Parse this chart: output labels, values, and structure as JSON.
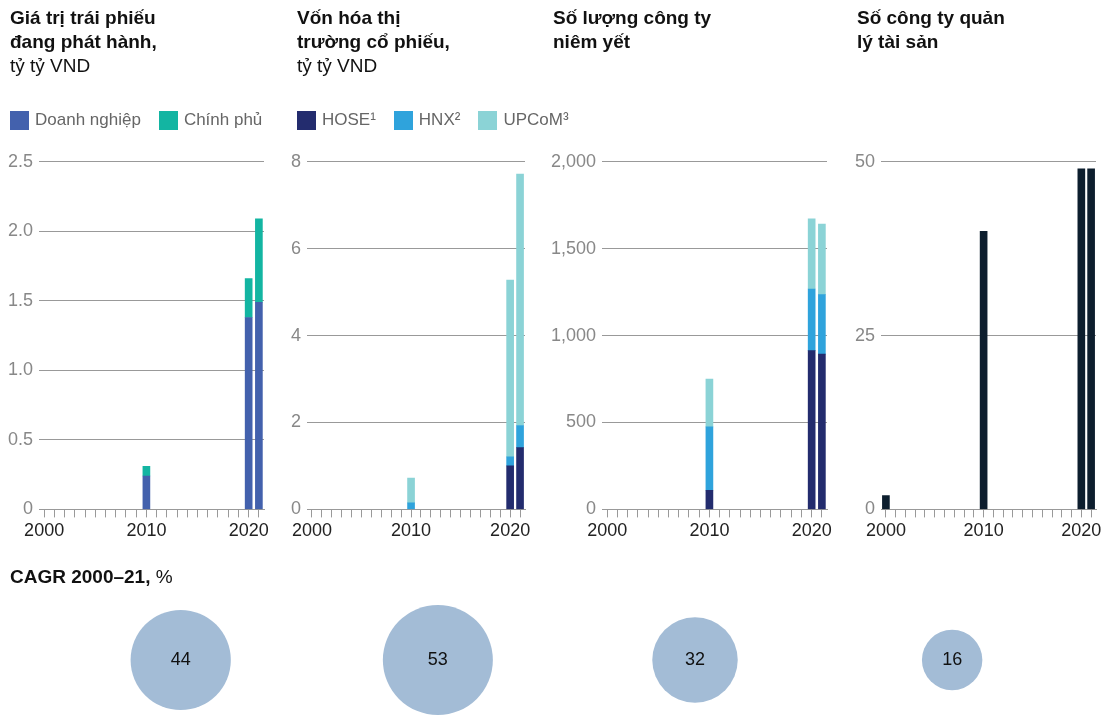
{
  "chart_data": [
    {
      "type": "bar",
      "title": "Giá trị trái phiếu đang phát hành,",
      "subtitle": "tỷ tỷ VND",
      "stacked": true,
      "legend": "top",
      "grid": "y",
      "categories": [
        "2000",
        null,
        null,
        null,
        null,
        null,
        null,
        null,
        null,
        null,
        "2010",
        null,
        null,
        null,
        null,
        null,
        null,
        null,
        null,
        null,
        "2020",
        null
      ],
      "series": [
        {
          "name": "Doanh nghiệp",
          "color": "#4361ad",
          "values": [
            null,
            null,
            null,
            null,
            null,
            null,
            null,
            null,
            null,
            null,
            0.24,
            null,
            null,
            null,
            null,
            null,
            null,
            null,
            null,
            null,
            1.38,
            1.49
          ]
        },
        {
          "name": "Chính phủ",
          "color": "#13b5a2",
          "values": [
            null,
            null,
            null,
            null,
            null,
            null,
            null,
            null,
            null,
            null,
            0.07,
            null,
            null,
            null,
            null,
            null,
            null,
            null,
            null,
            null,
            0.28,
            0.6
          ]
        }
      ],
      "ylim": [
        0,
        2.5
      ],
      "yticks": [
        0,
        0.5,
        {
          "value": 1,
          "label": "1.0"
        },
        1.5,
        {
          "value": 2,
          "label": "2.0"
        },
        2.5
      ]
    },
    {
      "type": "bar",
      "title": "Vốn hóa thị trường cổ phiếu,",
      "subtitle": "tỷ tỷ VND",
      "stacked": true,
      "legend": "top",
      "grid": "y",
      "categories": [
        "2000",
        null,
        null,
        null,
        null,
        null,
        null,
        null,
        null,
        null,
        "2010",
        null,
        null,
        null,
        null,
        null,
        null,
        null,
        null,
        null,
        "2020",
        null
      ],
      "series": [
        {
          "name": "HOSE¹",
          "color": "#232c6e",
          "values": [
            null,
            null,
            null,
            null,
            null,
            null,
            null,
            null,
            null,
            null,
            null,
            null,
            null,
            null,
            null,
            null,
            null,
            null,
            null,
            null,
            1.0,
            1.42
          ]
        },
        {
          "name": "HNX²",
          "color": "#2fa3dc",
          "values": [
            null,
            null,
            null,
            null,
            null,
            null,
            null,
            null,
            null,
            null,
            0.15,
            null,
            null,
            null,
            null,
            null,
            null,
            null,
            null,
            null,
            0.21,
            0.51
          ]
        },
        {
          "name": "UPCoM³",
          "color": "#8bd3d6",
          "values": [
            null,
            null,
            null,
            null,
            null,
            null,
            null,
            null,
            null,
            null,
            0.57,
            null,
            null,
            null,
            null,
            null,
            null,
            null,
            null,
            null,
            4.07,
            5.79
          ]
        }
      ],
      "ylim": [
        0,
        8
      ],
      "yticks": [
        0,
        2,
        4,
        6,
        8
      ]
    },
    {
      "type": "bar",
      "title": "Số lượng công ty niêm yết",
      "stacked": true,
      "grid": "y",
      "categories": [
        "2000",
        null,
        null,
        null,
        null,
        null,
        null,
        null,
        null,
        null,
        "2010",
        null,
        null,
        null,
        null,
        null,
        null,
        null,
        null,
        null,
        "2020",
        null
      ],
      "series": [
        {
          "color": "#232c6e",
          "values": [
            null,
            null,
            null,
            null,
            null,
            null,
            null,
            null,
            null,
            null,
            110,
            null,
            null,
            null,
            null,
            null,
            null,
            null,
            null,
            null,
            914,
            893
          ]
        },
        {
          "color": "#2fa3dc",
          "values": [
            null,
            null,
            null,
            null,
            null,
            null,
            null,
            null,
            null,
            null,
            365,
            null,
            null,
            null,
            null,
            null,
            null,
            null,
            null,
            null,
            354,
            343
          ]
        },
        {
          "color": "#8bd3d6",
          "values": [
            null,
            null,
            null,
            null,
            null,
            null,
            null,
            null,
            null,
            null,
            275,
            null,
            null,
            null,
            null,
            null,
            null,
            null,
            null,
            null,
            404,
            405
          ]
        }
      ],
      "ylim": [
        0,
        2000
      ],
      "yticks": [
        0,
        500,
        {
          "value": 1000,
          "label": "1,000"
        },
        {
          "value": 1500,
          "label": "1,500"
        },
        {
          "value": 2000,
          "label": "2,000"
        }
      ]
    },
    {
      "type": "bar",
      "title": "Số công ty quản lý tài sản",
      "grid": "y",
      "categories": [
        "2000",
        null,
        null,
        null,
        null,
        null,
        null,
        null,
        null,
        null,
        "2010",
        null,
        null,
        null,
        null,
        null,
        null,
        null,
        null,
        null,
        "2020",
        null
      ],
      "series": [
        {
          "color": "#0d1e2e",
          "values": [
            2,
            null,
            null,
            null,
            null,
            null,
            null,
            null,
            null,
            null,
            40,
            null,
            null,
            null,
            null,
            null,
            null,
            null,
            null,
            null,
            49,
            49
          ]
        }
      ],
      "ylim": [
        0,
        50
      ],
      "yticks": [
        0,
        25,
        50
      ]
    },
    {
      "type": "other",
      "title": "CAGR 2000–21, %",
      "values": [
        44,
        53,
        32,
        16
      ],
      "color": "#a3bcd6",
      "data_labels": true
    }
  ]
}
